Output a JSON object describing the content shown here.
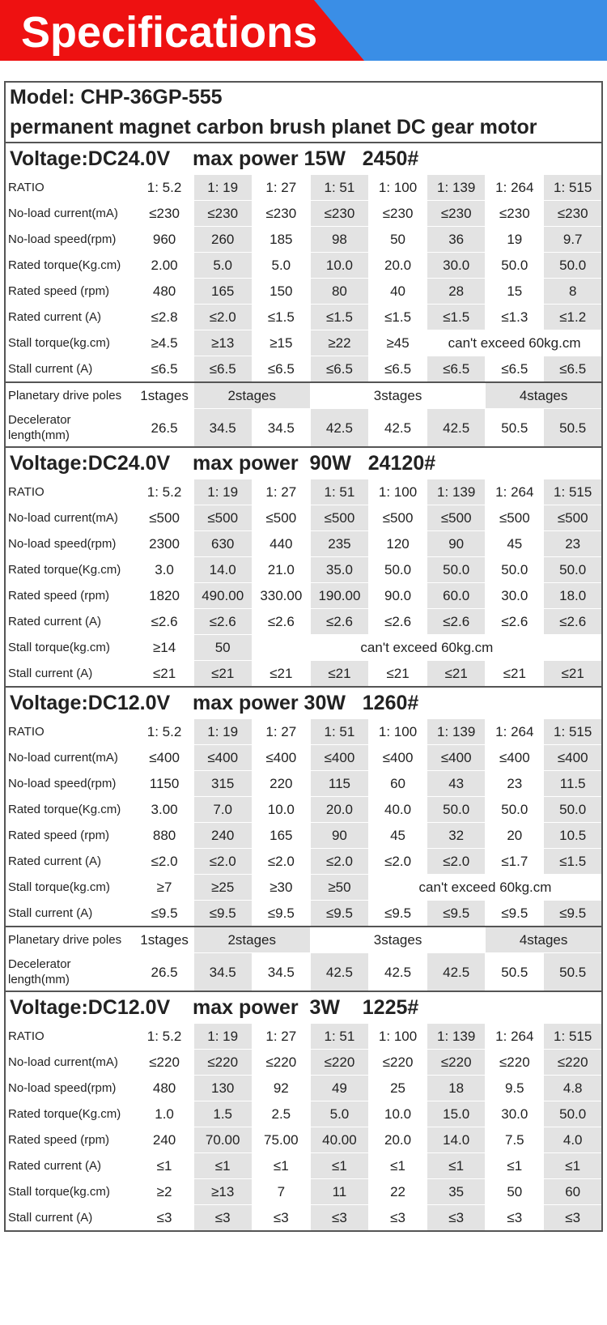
{
  "header": {
    "title": "Specifications"
  },
  "model": [
    "Model:  CHP-36GP-555",
    "permanent magnet carbon brush planet DC gear motor"
  ],
  "sections": [
    {
      "title": "Voltage:DC24.0V    max power 15W   2450#",
      "groups": [
        [
          [
            "RATIO",
            "1: 5.2",
            "1: 19",
            "1: 27",
            "1: 51",
            "1: 100",
            "1: 139",
            "1: 264",
            "1: 515"
          ],
          [
            "No-load current(mA)",
            "≤230",
            "≤230",
            "≤230",
            "≤230",
            "≤230",
            "≤230",
            "≤230",
            "≤230"
          ],
          [
            "No-load speed(rpm)",
            "960",
            "260",
            "185",
            "98",
            "50",
            "36",
            "19",
            "9.7"
          ],
          [
            "Rated torque(Kg.cm)",
            "2.00",
            "5.0",
            "5.0",
            "10.0",
            "20.0",
            "30.0",
            "50.0",
            "50.0"
          ],
          [
            "Rated speed   (rpm)",
            "480",
            "165",
            "150",
            "80",
            "40",
            "28",
            "15",
            "8"
          ],
          [
            "Rated current   (A)",
            "≤2.8",
            "≤2.0",
            "≤1.5",
            "≤1.5",
            "≤1.5",
            "≤1.5",
            "≤1.3",
            "≤1.2"
          ],
          [
            "Stall torque(kg.cm)",
            "≥4.5",
            "≥13",
            "≥15",
            "≥22",
            "≥45",
            "can't exceed 60kg.cm",
            null,
            null
          ],
          [
            "Stall current   (A)",
            "≤6.5",
            "≤6.5",
            "≤6.5",
            "≤6.5",
            "≤6.5",
            "≤6.5",
            "≤6.5",
            "≤6.5"
          ]
        ],
        [
          [
            "Planetary drive poles",
            "1stages",
            "2stages",
            null,
            "3stages",
            null,
            null,
            "4stages",
            null
          ],
          [
            "Decelerator length(mm)",
            "26.5",
            "34.5",
            "34.5",
            "42.5",
            "42.5",
            "42.5",
            "50.5",
            "50.5"
          ]
        ]
      ]
    },
    {
      "title": "Voltage:DC24.0V    max power  90W   24120#",
      "groups": [
        [
          [
            "RATIO",
            "1: 5.2",
            "1: 19",
            "1: 27",
            "1: 51",
            "1: 100",
            "1: 139",
            "1: 264",
            "1: 515"
          ],
          [
            "No-load current(mA)",
            "≤500",
            "≤500",
            "≤500",
            "≤500",
            "≤500",
            "≤500",
            "≤500",
            "≤500"
          ],
          [
            "No-load speed(rpm)",
            "2300",
            "630",
            "440",
            "235",
            "120",
            "90",
            "45",
            "23"
          ],
          [
            "Rated torque(Kg.cm)",
            "3.0",
            "14.0",
            "21.0",
            "35.0",
            "50.0",
            "50.0",
            "50.0",
            "50.0"
          ],
          [
            "Rated speed   (rpm)",
            "1820",
            "490.00",
            "330.00",
            "190.00",
            "90.0",
            "60.0",
            "30.0",
            "18.0"
          ],
          [
            "Rated current   (A)",
            "≤2.6",
            "≤2.6",
            "≤2.6",
            "≤2.6",
            "≤2.6",
            "≤2.6",
            "≤2.6",
            "≤2.6"
          ],
          [
            "Stall torque(kg.cm)",
            "≥14",
            "50",
            "can't exceed 60kg.cm",
            null,
            null,
            null,
            null,
            null
          ],
          [
            "Stall current   (A)",
            "≤21",
            "≤21",
            "≤21",
            "≤21",
            "≤21",
            "≤21",
            "≤21",
            "≤21"
          ]
        ]
      ]
    },
    {
      "title": "Voltage:DC12.0V    max power 30W   1260#",
      "groups": [
        [
          [
            "RATIO",
            "1: 5.2",
            "1: 19",
            "1: 27",
            "1: 51",
            "1: 100",
            "1: 139",
            "1: 264",
            "1: 515"
          ],
          [
            "No-load current(mA)",
            "≤400",
            "≤400",
            "≤400",
            "≤400",
            "≤400",
            "≤400",
            "≤400",
            "≤400"
          ],
          [
            "No-load speed(rpm)",
            "1150",
            "315",
            "220",
            "115",
            "60",
            "43",
            "23",
            "11.5"
          ],
          [
            "Rated torque(Kg.cm)",
            "3.00",
            "7.0",
            "10.0",
            "20.0",
            "40.0",
            "50.0",
            "50.0",
            "50.0"
          ],
          [
            "Rated speed   (rpm)",
            "880",
            "240",
            "165",
            "90",
            "45",
            "32",
            "20",
            "10.5"
          ],
          [
            "Rated current   (A)",
            "≤2.0",
            "≤2.0",
            "≤2.0",
            "≤2.0",
            "≤2.0",
            "≤2.0",
            "≤1.7",
            "≤1.5"
          ],
          [
            "Stall torque(kg.cm)",
            "≥7",
            "≥25",
            "≥30",
            "≥50",
            "can't exceed 60kg.cm",
            null,
            null,
            null
          ],
          [
            "Stall current   (A)",
            "≤9.5",
            "≤9.5",
            "≤9.5",
            "≤9.5",
            "≤9.5",
            "≤9.5",
            "≤9.5",
            "≤9.5"
          ]
        ],
        [
          [
            "Planetary drive poles",
            "1stages",
            "2stages",
            null,
            "3stages",
            null,
            null,
            "4stages",
            null
          ],
          [
            "Decelerator length(mm)",
            "26.5",
            "34.5",
            "34.5",
            "42.5",
            "42.5",
            "42.5",
            "50.5",
            "50.5"
          ]
        ]
      ]
    },
    {
      "title": "Voltage:DC12.0V    max power  3W    1225#",
      "groups": [
        [
          [
            "RATIO",
            "1: 5.2",
            "1: 19",
            "1: 27",
            "1: 51",
            "1: 100",
            "1: 139",
            "1: 264",
            "1: 515"
          ],
          [
            "No-load current(mA)",
            "≤220",
            "≤220",
            "≤220",
            "≤220",
            "≤220",
            "≤220",
            "≤220",
            "≤220"
          ],
          [
            "No-load speed(rpm)",
            "480",
            "130",
            "92",
            "49",
            "25",
            "18",
            "9.5",
            "4.8"
          ],
          [
            "Rated torque(Kg.cm)",
            "1.0",
            "1.5",
            "2.5",
            "5.0",
            "10.0",
            "15.0",
            "30.0",
            "50.0"
          ],
          [
            "Rated speed   (rpm)",
            "240",
            "70.00",
            "75.00",
            "40.00",
            "20.0",
            "14.0",
            "7.5",
            "4.0"
          ],
          [
            "Rated current   (A)",
            "≤1",
            "≤1",
            "≤1",
            "≤1",
            "≤1",
            "≤1",
            "≤1",
            "≤1"
          ],
          [
            "Stall torque(kg.cm)",
            "≥2",
            "≥13",
            "7",
            "11",
            "22",
            "35",
            "50",
            "60"
          ],
          [
            "Stall current   (A)",
            "≤3",
            "≤3",
            "≤3",
            "≤3",
            "≤3",
            "≤3",
            "≤3",
            "≤3"
          ]
        ]
      ]
    }
  ]
}
